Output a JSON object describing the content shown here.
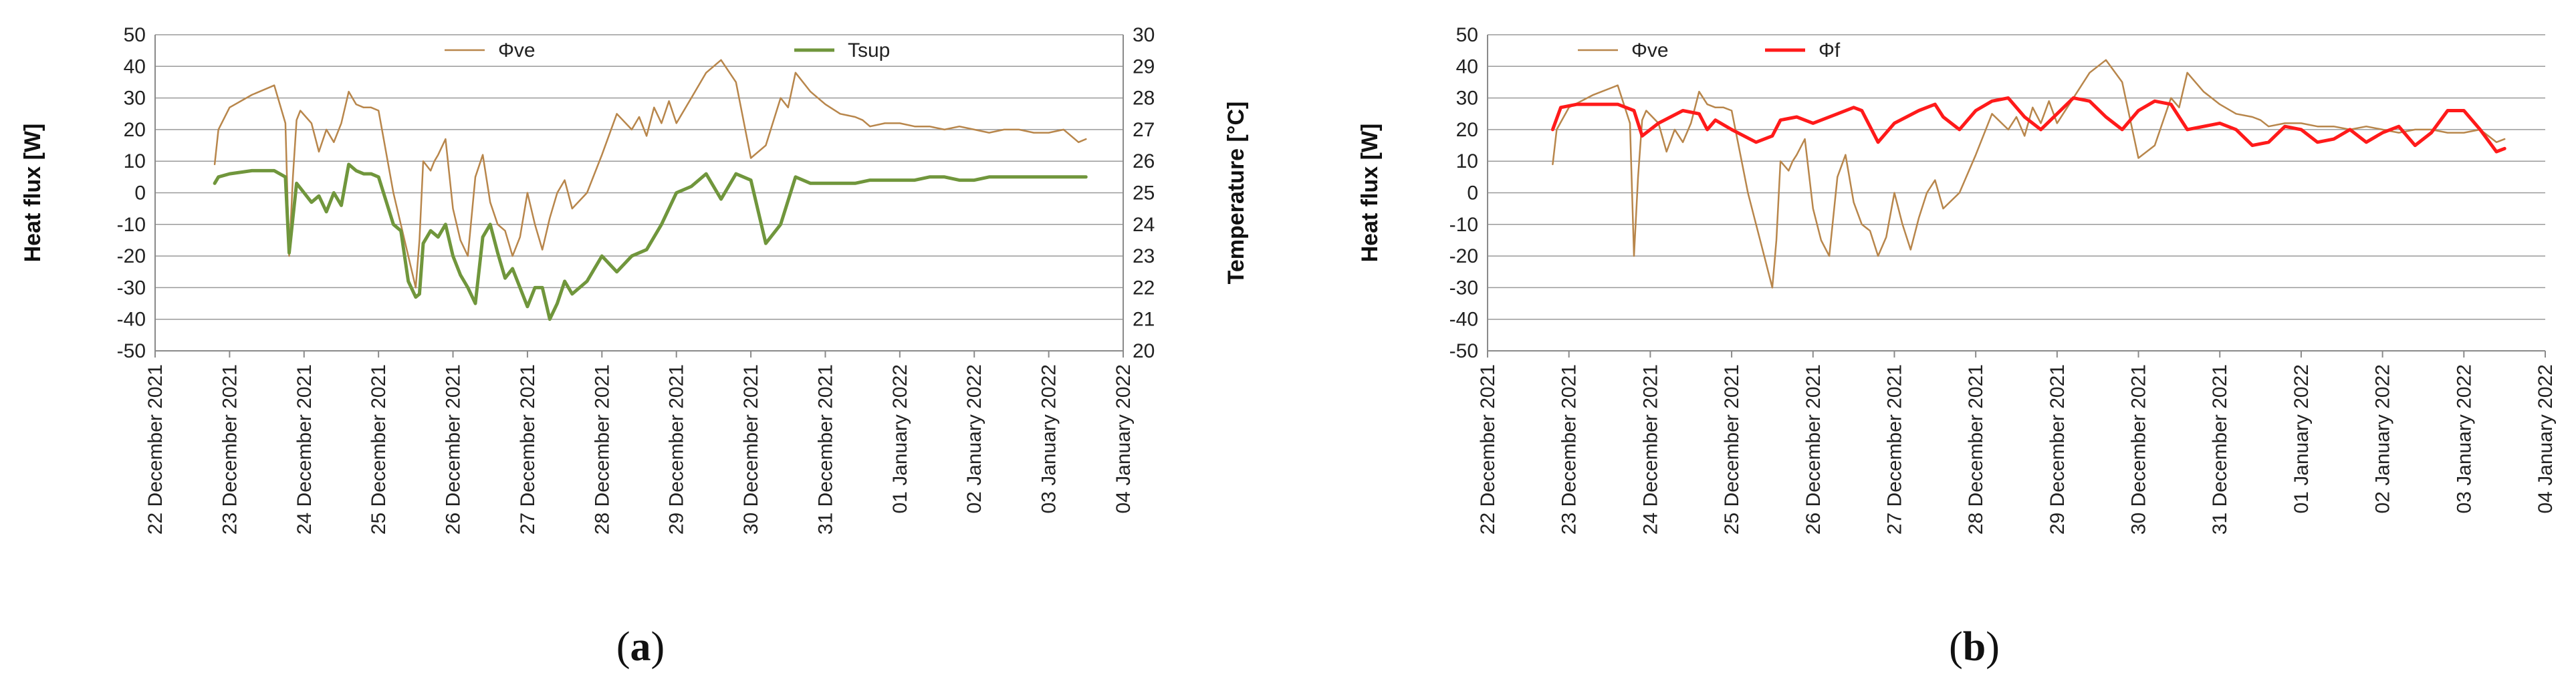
{
  "chart_data": [
    {
      "panel_label": "(a)",
      "panel_letter": "a",
      "type": "line",
      "title": "",
      "xlabel": "",
      "ylabel": "Heat flux [W]",
      "y2label": "Temperature [°C]",
      "ylim": [
        -50,
        50
      ],
      "y2lim": [
        20,
        30
      ],
      "yticks": [
        -50,
        -40,
        -30,
        -20,
        -10,
        0,
        10,
        20,
        30,
        40,
        50
      ],
      "y2ticks": [
        20,
        21,
        22,
        23,
        24,
        25,
        26,
        27,
        28,
        29,
        30
      ],
      "xlim": [
        0,
        13
      ],
      "xtick_labels": [
        "22 December 2021",
        "23 December 2021",
        "24 December 2021",
        "25 December 2021",
        "26 December 2021",
        "27 December 2021",
        "28 December 2021",
        "29 December 2021",
        "30 December 2021",
        "31 December 2021",
        "01 January 2022",
        "02 January 2022",
        "03 January 2022",
        "04 January 2022"
      ],
      "grid": true,
      "legend_position": "top-center",
      "series": [
        {
          "name": "Φve",
          "axis": "left",
          "color": "#B8864B",
          "x": [
            0.8,
            0.85,
            1.0,
            1.3,
            1.6,
            1.75,
            1.8,
            1.85,
            1.9,
            1.95,
            2.1,
            2.2,
            2.3,
            2.4,
            2.5,
            2.6,
            2.7,
            2.8,
            2.9,
            3.0,
            3.2,
            3.4,
            3.5,
            3.55,
            3.6,
            3.7,
            3.75,
            3.8,
            3.9,
            4.0,
            4.1,
            4.2,
            4.3,
            4.4,
            4.5,
            4.6,
            4.7,
            4.8,
            4.9,
            5.0,
            5.1,
            5.2,
            5.3,
            5.4,
            5.5,
            5.6,
            5.8,
            6.0,
            6.2,
            6.4,
            6.5,
            6.6,
            6.7,
            6.8,
            6.9,
            7.0,
            7.2,
            7.4,
            7.6,
            7.8,
            8.0,
            8.2,
            8.4,
            8.5,
            8.6,
            8.8,
            8.9,
            9.0,
            9.2,
            9.4,
            9.5,
            9.6,
            9.8,
            10.0,
            10.2,
            10.4,
            10.6,
            10.8,
            11.0,
            11.2,
            11.4,
            11.6,
            11.8,
            12.0,
            12.2,
            12.4,
            12.5
          ],
          "y": [
            9,
            20,
            27,
            31,
            34,
            22,
            -20,
            5,
            23,
            26,
            22,
            13,
            20,
            16,
            22,
            32,
            28,
            27,
            27,
            26,
            0,
            -20,
            -30,
            -15,
            10,
            7,
            10,
            12,
            17,
            -5,
            -15,
            -20,
            5,
            12,
            -3,
            -10,
            -12,
            -20,
            -14,
            0,
            -10,
            -18,
            -8,
            0,
            4,
            -5,
            0,
            12,
            25,
            20,
            24,
            18,
            27,
            22,
            29,
            22,
            30,
            38,
            42,
            35,
            11,
            15,
            30,
            27,
            38,
            32,
            30,
            28,
            25,
            24,
            23,
            21,
            22,
            22,
            21,
            21,
            20,
            21,
            20,
            19,
            20,
            20,
            19,
            19,
            20,
            16,
            17
          ]
        },
        {
          "name": "Tsup",
          "axis": "right",
          "color": "#70963C",
          "x": [
            0.8,
            0.85,
            1.0,
            1.3,
            1.6,
            1.75,
            1.8,
            1.9,
            2.0,
            2.1,
            2.2,
            2.3,
            2.4,
            2.5,
            2.6,
            2.7,
            2.8,
            2.9,
            3.0,
            3.2,
            3.3,
            3.4,
            3.5,
            3.55,
            3.6,
            3.7,
            3.8,
            3.9,
            4.0,
            4.1,
            4.2,
            4.3,
            4.4,
            4.5,
            4.6,
            4.7,
            4.8,
            4.9,
            5.0,
            5.1,
            5.2,
            5.3,
            5.4,
            5.5,
            5.6,
            5.8,
            6.0,
            6.2,
            6.4,
            6.6,
            6.8,
            7.0,
            7.2,
            7.4,
            7.6,
            7.8,
            8.0,
            8.2,
            8.4,
            8.6,
            8.8,
            9.0,
            9.2,
            9.4,
            9.6,
            9.8,
            10.0,
            10.2,
            10.4,
            10.6,
            10.8,
            11.0,
            11.2,
            11.4,
            11.6,
            11.8,
            12.0,
            12.2,
            12.4,
            12.5
          ],
          "y": [
            25.3,
            25.5,
            25.6,
            25.7,
            25.7,
            25.5,
            23.1,
            25.3,
            25.0,
            24.7,
            24.9,
            24.4,
            25.0,
            24.6,
            25.9,
            25.7,
            25.6,
            25.6,
            25.5,
            24.0,
            23.8,
            22.2,
            21.7,
            21.8,
            23.4,
            23.8,
            23.6,
            24.0,
            23.0,
            22.4,
            22.0,
            21.5,
            23.6,
            24.0,
            23.1,
            22.3,
            22.6,
            22.0,
            21.4,
            22.0,
            22.0,
            21.0,
            21.5,
            22.2,
            21.8,
            22.2,
            23.0,
            22.5,
            23.0,
            23.2,
            24.0,
            25.0,
            25.2,
            25.6,
            24.8,
            25.6,
            25.4,
            23.4,
            24.0,
            25.5,
            25.3,
            25.3,
            25.3,
            25.3,
            25.4,
            25.4,
            25.4,
            25.4,
            25.5,
            25.5,
            25.4,
            25.4,
            25.5,
            25.5,
            25.5,
            25.5,
            25.5,
            25.5,
            25.5,
            25.5
          ]
        }
      ]
    },
    {
      "panel_label": "(b)",
      "panel_letter": "b",
      "type": "line",
      "title": "",
      "xlabel": "",
      "ylabel": "Heat flux [W]",
      "ylim": [
        -50,
        50
      ],
      "yticks": [
        -50,
        -40,
        -30,
        -20,
        -10,
        0,
        10,
        20,
        30,
        40,
        50
      ],
      "xlim": [
        0,
        13
      ],
      "xtick_labels": [
        "22 December 2021",
        "23 December 2021",
        "24 December 2021",
        "25 December 2021",
        "26 December 2021",
        "27 December 2021",
        "28 December 2021",
        "29 December 2021",
        "30 December 2021",
        "31 December 2021",
        "01 January 2022",
        "02 January 2022",
        "03 January 2022",
        "04 January 2022"
      ],
      "grid": true,
      "legend_position": "top-left",
      "series": [
        {
          "name": "Φve",
          "axis": "left",
          "color": "#B8864B",
          "x": [
            0.8,
            0.85,
            1.0,
            1.3,
            1.6,
            1.75,
            1.8,
            1.85,
            1.9,
            1.95,
            2.1,
            2.2,
            2.3,
            2.4,
            2.5,
            2.6,
            2.7,
            2.8,
            2.9,
            3.0,
            3.2,
            3.4,
            3.5,
            3.55,
            3.6,
            3.7,
            3.75,
            3.8,
            3.9,
            4.0,
            4.1,
            4.2,
            4.3,
            4.4,
            4.5,
            4.6,
            4.7,
            4.8,
            4.9,
            5.0,
            5.1,
            5.2,
            5.3,
            5.4,
            5.5,
            5.6,
            5.8,
            6.0,
            6.2,
            6.4,
            6.5,
            6.6,
            6.7,
            6.8,
            6.9,
            7.0,
            7.2,
            7.4,
            7.6,
            7.8,
            8.0,
            8.2,
            8.4,
            8.5,
            8.6,
            8.8,
            8.9,
            9.0,
            9.2,
            9.4,
            9.5,
            9.6,
            9.8,
            10.0,
            10.2,
            10.4,
            10.6,
            10.8,
            11.0,
            11.2,
            11.4,
            11.6,
            11.8,
            12.0,
            12.2,
            12.4,
            12.5
          ],
          "y": [
            9,
            20,
            27,
            31,
            34,
            22,
            -20,
            5,
            23,
            26,
            22,
            13,
            20,
            16,
            22,
            32,
            28,
            27,
            27,
            26,
            0,
            -20,
            -30,
            -15,
            10,
            7,
            10,
            12,
            17,
            -5,
            -15,
            -20,
            5,
            12,
            -3,
            -10,
            -12,
            -20,
            -14,
            0,
            -10,
            -18,
            -8,
            0,
            4,
            -5,
            0,
            12,
            25,
            20,
            24,
            18,
            27,
            22,
            29,
            22,
            30,
            38,
            42,
            35,
            11,
            15,
            30,
            27,
            38,
            32,
            30,
            28,
            25,
            24,
            23,
            21,
            22,
            22,
            21,
            21,
            20,
            21,
            20,
            19,
            20,
            20,
            19,
            19,
            20,
            16,
            17
          ]
        },
        {
          "name": "Φf",
          "axis": "left",
          "color": "#FF1A1A",
          "x": [
            0.8,
            0.9,
            1.1,
            1.4,
            1.6,
            1.8,
            1.9,
            2.1,
            2.4,
            2.6,
            2.7,
            2.8,
            3.0,
            3.3,
            3.5,
            3.6,
            3.8,
            4.0,
            4.3,
            4.5,
            4.6,
            4.8,
            5.0,
            5.3,
            5.5,
            5.6,
            5.8,
            6.0,
            6.2,
            6.4,
            6.6,
            6.8,
            7.0,
            7.2,
            7.4,
            7.6,
            7.8,
            8.0,
            8.2,
            8.4,
            8.6,
            8.8,
            9.0,
            9.2,
            9.4,
            9.6,
            9.8,
            10.0,
            10.2,
            10.4,
            10.6,
            10.8,
            11.0,
            11.2,
            11.4,
            11.6,
            11.8,
            12.0,
            12.2,
            12.4,
            12.5
          ],
          "y": [
            20,
            27,
            28,
            28,
            28,
            26,
            18,
            22,
            26,
            25,
            20,
            23,
            20,
            16,
            18,
            23,
            24,
            22,
            25,
            27,
            26,
            16,
            22,
            26,
            28,
            24,
            20,
            26,
            29,
            30,
            24,
            20,
            25,
            30,
            29,
            24,
            20,
            26,
            29,
            28,
            20,
            21,
            22,
            20,
            15,
            16,
            21,
            20,
            16,
            17,
            20,
            16,
            19,
            21,
            15,
            19,
            26,
            26,
            20,
            13,
            14
          ]
        }
      ]
    }
  ]
}
